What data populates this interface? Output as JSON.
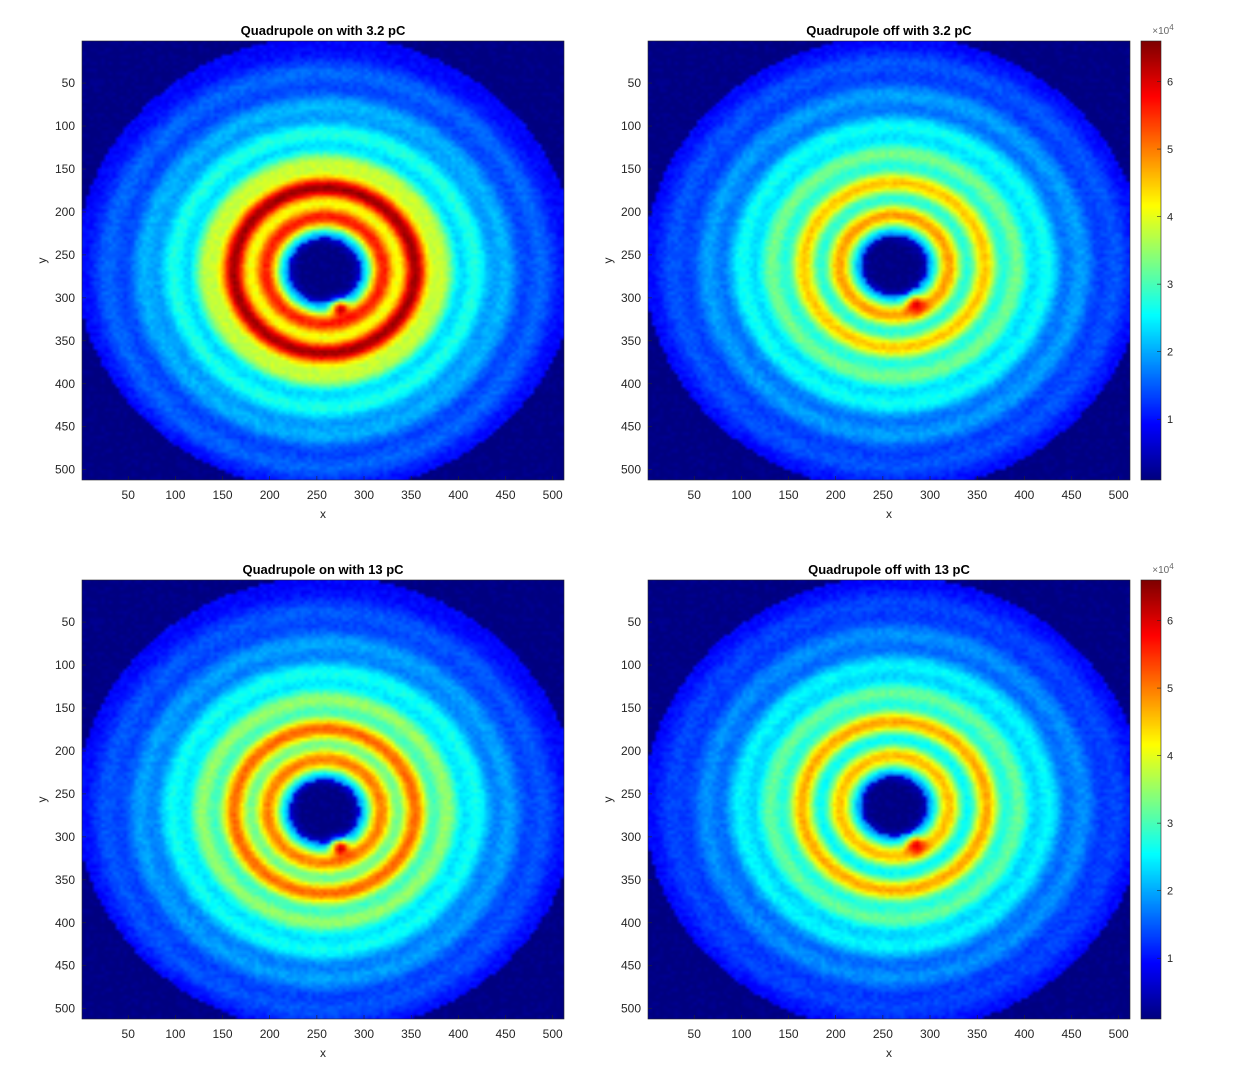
{
  "chart_data": [
    {
      "type": "heatmap",
      "title": "Quadrupole on with 3.2 pC",
      "xlabel": "x",
      "ylabel": "y",
      "xlim": [
        1,
        512
      ],
      "ylim": [
        1,
        512
      ],
      "y_direction": "reversed",
      "xticks": [
        50,
        100,
        150,
        200,
        250,
        300,
        350,
        400,
        450,
        500
      ],
      "yticks": [
        50,
        100,
        150,
        200,
        250,
        300,
        350,
        400,
        450,
        500
      ],
      "colormap": "jet",
      "clim": [
        1000,
        66000
      ],
      "colorbar": false,
      "features": {
        "detector_disk": {
          "center": [
            260,
            260
          ],
          "radius": 265,
          "level": 9000
        },
        "central_hole": {
          "center": [
            258,
            268
          ],
          "radius": 38
        },
        "rings": [
          {
            "radius": 62,
            "peak": 52000
          },
          {
            "radius": 96,
            "peak": 60000
          },
          {
            "radius": 126,
            "peak": 34000
          },
          {
            "radius": 160,
            "peak": 25000
          },
          {
            "radius": 192,
            "peak": 19000
          },
          {
            "radius": 230,
            "peak": 15000
          }
        ],
        "hot_spot": {
          "x": 275,
          "y": 313,
          "peak": 64000
        }
      }
    },
    {
      "type": "heatmap",
      "title": "Quadrupole off with 3.2 pC",
      "xlabel": "x",
      "ylabel": "y",
      "xlim": [
        1,
        512
      ],
      "ylim": [
        1,
        512
      ],
      "y_direction": "reversed",
      "xticks": [
        50,
        100,
        150,
        200,
        250,
        300,
        350,
        400,
        450,
        500
      ],
      "yticks": [
        50,
        100,
        150,
        200,
        250,
        300,
        350,
        400,
        450,
        500
      ],
      "colormap": "jet",
      "clim": [
        1000,
        66000
      ],
      "colorbar": true,
      "colorbar_ticks": [
        1,
        2,
        3,
        4,
        5,
        6
      ],
      "colorbar_exponent": "×10^4",
      "features": {
        "detector_disk": {
          "center": [
            262,
            260
          ],
          "radius": 265,
          "level": 9000
        },
        "central_hole": {
          "center": [
            262,
            262
          ],
          "radius": 35
        },
        "rings": [
          {
            "radius": 58,
            "peak": 44000
          },
          {
            "radius": 96,
            "peak": 42000
          },
          {
            "radius": 130,
            "peak": 30000
          },
          {
            "radius": 162,
            "peak": 24000
          },
          {
            "radius": 198,
            "peak": 18000
          },
          {
            "radius": 235,
            "peak": 14000
          }
        ],
        "hot_spot": {
          "x": 285,
          "y": 308,
          "peak": 62000
        }
      }
    },
    {
      "type": "heatmap",
      "title": "Quadrupole on with 13 pC",
      "xlabel": "x",
      "ylabel": "y",
      "xlim": [
        1,
        512
      ],
      "ylim": [
        1,
        512
      ],
      "y_direction": "reversed",
      "xticks": [
        50,
        100,
        150,
        200,
        250,
        300,
        350,
        400,
        450,
        500
      ],
      "yticks": [
        50,
        100,
        150,
        200,
        250,
        300,
        350,
        400,
        450,
        500
      ],
      "colormap": "jet",
      "clim": [
        1000,
        66000
      ],
      "colorbar": false,
      "features": {
        "detector_disk": {
          "center": [
            260,
            262
          ],
          "radius": 265,
          "level": 9000
        },
        "central_hole": {
          "center": [
            258,
            270
          ],
          "radius": 37
        },
        "rings": [
          {
            "radius": 60,
            "peak": 46000
          },
          {
            "radius": 96,
            "peak": 48000
          },
          {
            "radius": 130,
            "peak": 32000
          },
          {
            "radius": 162,
            "peak": 24000
          },
          {
            "radius": 196,
            "peak": 18000
          },
          {
            "radius": 232,
            "peak": 14000
          }
        ],
        "hot_spot": {
          "x": 275,
          "y": 313,
          "peak": 64000
        }
      }
    },
    {
      "type": "heatmap",
      "title": "Quadrupole off with 13 pC",
      "xlabel": "x",
      "ylabel": "y",
      "xlim": [
        1,
        512
      ],
      "ylim": [
        1,
        512
      ],
      "y_direction": "reversed",
      "xticks": [
        50,
        100,
        150,
        200,
        250,
        300,
        350,
        400,
        450,
        500
      ],
      "yticks": [
        50,
        100,
        150,
        200,
        250,
        300,
        350,
        400,
        450,
        500
      ],
      "colormap": "jet",
      "clim": [
        1000,
        66000
      ],
      "colorbar": true,
      "colorbar_ticks": [
        1,
        2,
        3,
        4,
        5,
        6
      ],
      "colorbar_exponent": "×10^4",
      "features": {
        "detector_disk": {
          "center": [
            262,
            262
          ],
          "radius": 265,
          "level": 9000
        },
        "central_hole": {
          "center": [
            262,
            264
          ],
          "radius": 35
        },
        "rings": [
          {
            "radius": 58,
            "peak": 42000
          },
          {
            "radius": 98,
            "peak": 44000
          },
          {
            "radius": 132,
            "peak": 29000
          },
          {
            "radius": 164,
            "peak": 23000
          },
          {
            "radius": 200,
            "peak": 17000
          },
          {
            "radius": 236,
            "peak": 13000
          }
        ],
        "hot_spot": {
          "x": 285,
          "y": 310,
          "peak": 62000
        }
      }
    }
  ]
}
